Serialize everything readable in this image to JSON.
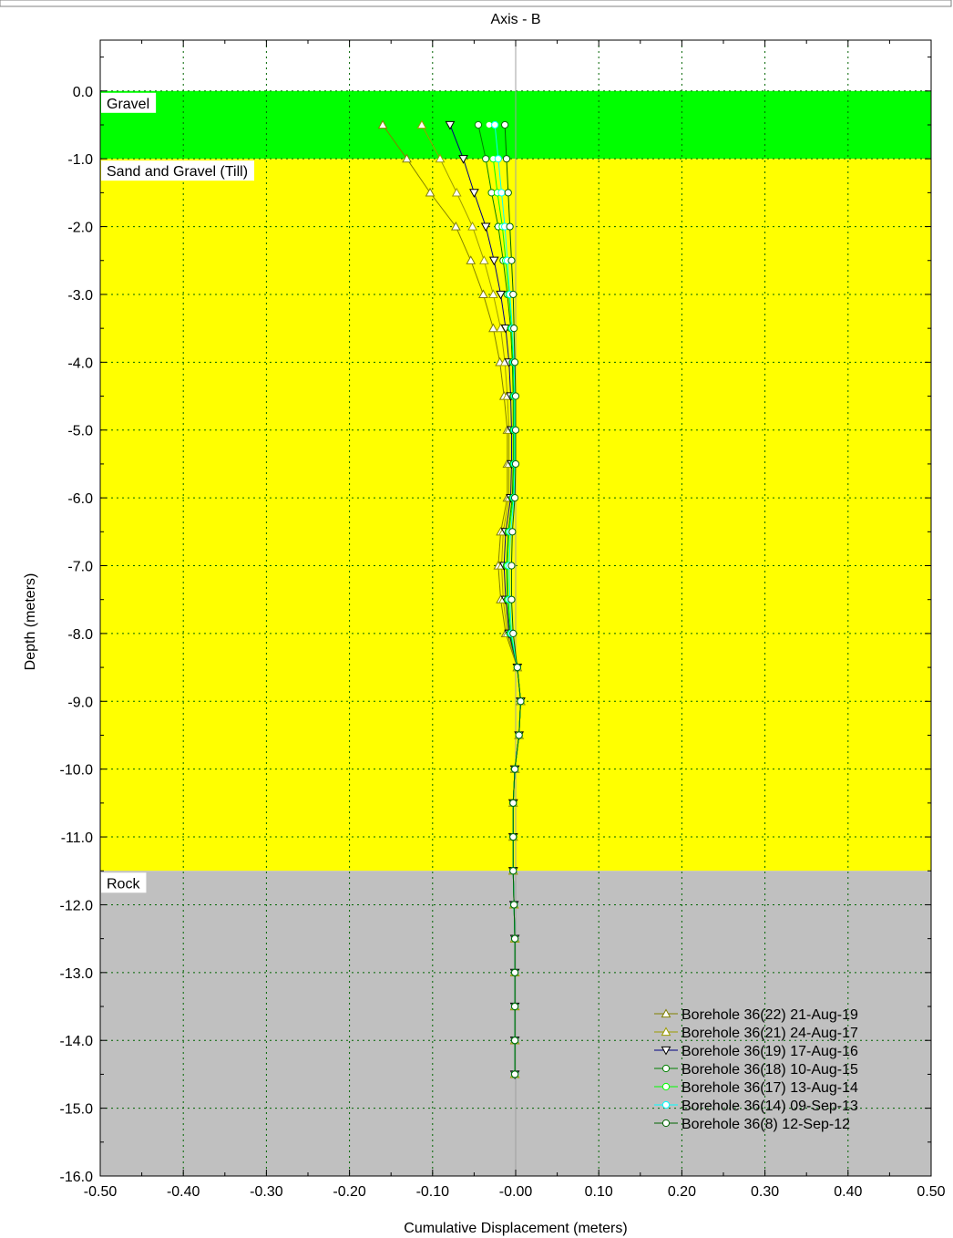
{
  "chart_data": {
    "type": "line",
    "title": "Axis - B",
    "xlabel": "Cumulative Displacement (meters)",
    "ylabel": "Depth (meters)",
    "xlim": [
      -0.5,
      0.5
    ],
    "ylim": [
      -16.0,
      0.75
    ],
    "x_ticks": [
      -0.5,
      -0.4,
      -0.3,
      -0.2,
      -0.1,
      0.0,
      0.1,
      0.2,
      0.3,
      0.4,
      0.5
    ],
    "x_tick_labels": [
      "-0.50",
      "-0.40",
      "-0.30",
      "-0.20",
      "-0.10",
      "-0.00",
      "0.10",
      "0.20",
      "0.30",
      "0.40",
      "0.50"
    ],
    "y_ticks": [
      0,
      -1,
      -2,
      -3,
      -4,
      -5,
      -6,
      -7,
      -8,
      -9,
      -10,
      -11,
      -12,
      -13,
      -14,
      -15,
      -16
    ],
    "y_tick_labels": [
      "0.0",
      "-1.0",
      "-2.0",
      "-3.0",
      "-4.0",
      "-5.0",
      "-6.0",
      "-7.0",
      "-8.0",
      "-9.0",
      "-10.0",
      "-11.0",
      "-12.0",
      "-13.0",
      "-14.0",
      "-15.0",
      "-16.0"
    ],
    "grid": true,
    "legend_position": "bottom-right",
    "layers": [
      {
        "name": "Gravel",
        "top": 0.0,
        "bottom": -1.0,
        "color": "#00ff00"
      },
      {
        "name": "Sand and Gravel (Till)",
        "top": -1.0,
        "bottom": -11.5,
        "color": "#ffff00"
      },
      {
        "name": "Rock",
        "top": -11.5,
        "bottom": -16.0,
        "color": "#c0c0c0"
      }
    ],
    "depths": [
      -0.5,
      -1.0,
      -1.5,
      -2.0,
      -2.5,
      -3.0,
      -3.5,
      -4.0,
      -4.5,
      -5.0,
      -5.5,
      -6.0,
      -6.5,
      -7.0,
      -7.5,
      -8.0,
      -8.5,
      -9.0,
      -9.5,
      -10.0,
      -10.5,
      -11.0,
      -11.5,
      -12.0,
      -12.5,
      -13.0,
      -13.5,
      -14.0,
      -14.5
    ],
    "series": [
      {
        "name": "Borehole 36(22) 21-Aug-19",
        "marker": "triangle-up",
        "color": "#808000",
        "values": [
          -0.16,
          -0.131,
          -0.103,
          -0.072,
          -0.054,
          -0.039,
          -0.027,
          -0.019,
          -0.014,
          -0.01,
          -0.01,
          -0.01,
          -0.018,
          -0.021,
          -0.018,
          -0.012,
          0.002,
          0.006,
          0.004,
          -0.001,
          -0.003,
          -0.003,
          -0.003,
          -0.002,
          -0.001,
          -0.001,
          -0.001,
          -0.001,
          -0.001
        ]
      },
      {
        "name": "Borehole 36(21) 24-Aug-17",
        "marker": "triangle-up",
        "color": "#9c9c00",
        "values": [
          -0.113,
          -0.091,
          -0.071,
          -0.052,
          -0.038,
          -0.027,
          -0.018,
          -0.013,
          -0.01,
          -0.008,
          -0.008,
          -0.008,
          -0.015,
          -0.017,
          -0.015,
          -0.01,
          0.002,
          0.006,
          0.004,
          -0.001,
          -0.003,
          -0.003,
          -0.003,
          -0.002,
          -0.001,
          -0.001,
          -0.001,
          -0.001,
          -0.001
        ]
      },
      {
        "name": "Borehole 36(19) 17-Aug-16",
        "marker": "triangle-down",
        "color": "#000080",
        "values": [
          -0.079,
          -0.063,
          -0.05,
          -0.036,
          -0.026,
          -0.018,
          -0.012,
          -0.008,
          -0.006,
          -0.005,
          -0.005,
          -0.006,
          -0.012,
          -0.014,
          -0.012,
          -0.008,
          0.002,
          0.006,
          0.004,
          -0.001,
          -0.003,
          -0.003,
          -0.003,
          -0.002,
          -0.001,
          -0.001,
          -0.001,
          -0.001,
          -0.001
        ]
      },
      {
        "name": "Borehole 36(18) 10-Aug-15",
        "marker": "circle",
        "color": "#008000",
        "values": [
          -0.045,
          -0.036,
          -0.029,
          -0.021,
          -0.015,
          -0.01,
          -0.006,
          -0.004,
          -0.003,
          -0.003,
          -0.003,
          -0.004,
          -0.009,
          -0.011,
          -0.01,
          -0.007,
          0.002,
          0.006,
          0.004,
          -0.001,
          -0.003,
          -0.003,
          -0.003,
          -0.002,
          -0.001,
          -0.001,
          -0.001,
          -0.001,
          -0.001
        ]
      },
      {
        "name": "Borehole 36(17) 13-Aug-14",
        "marker": "circle",
        "color": "#00ff00",
        "values": [
          -0.032,
          -0.027,
          -0.022,
          -0.016,
          -0.012,
          -0.008,
          -0.005,
          -0.003,
          -0.002,
          -0.002,
          -0.002,
          -0.003,
          -0.008,
          -0.01,
          -0.009,
          -0.006,
          0.002,
          0.006,
          0.004,
          -0.001,
          -0.003,
          -0.003,
          -0.003,
          -0.002,
          -0.001,
          -0.001,
          -0.001,
          -0.001,
          -0.001
        ]
      },
      {
        "name": "Borehole 36(14) 09-Sep-13",
        "marker": "circle",
        "color": "#00ffff",
        "values": [
          -0.025,
          -0.021,
          -0.017,
          -0.013,
          -0.01,
          -0.007,
          -0.004,
          -0.002,
          -0.001,
          -0.001,
          -0.001,
          -0.002,
          -0.006,
          -0.008,
          -0.007,
          -0.005,
          0.002,
          0.006,
          0.004,
          -0.001,
          -0.003,
          -0.003,
          -0.003,
          -0.002,
          -0.001,
          -0.001,
          -0.001,
          -0.001,
          -0.001
        ]
      },
      {
        "name": "Borehole 36(8) 12-Sep-12",
        "marker": "circle",
        "color": "#006400",
        "values": [
          -0.013,
          -0.011,
          -0.009,
          -0.007,
          -0.005,
          -0.003,
          -0.002,
          -0.001,
          0.0,
          0.0,
          0.0,
          -0.001,
          -0.004,
          -0.005,
          -0.005,
          -0.003,
          0.002,
          0.006,
          0.004,
          -0.001,
          -0.003,
          -0.003,
          -0.003,
          -0.002,
          -0.001,
          -0.001,
          -0.001,
          -0.001,
          -0.001
        ]
      }
    ]
  }
}
